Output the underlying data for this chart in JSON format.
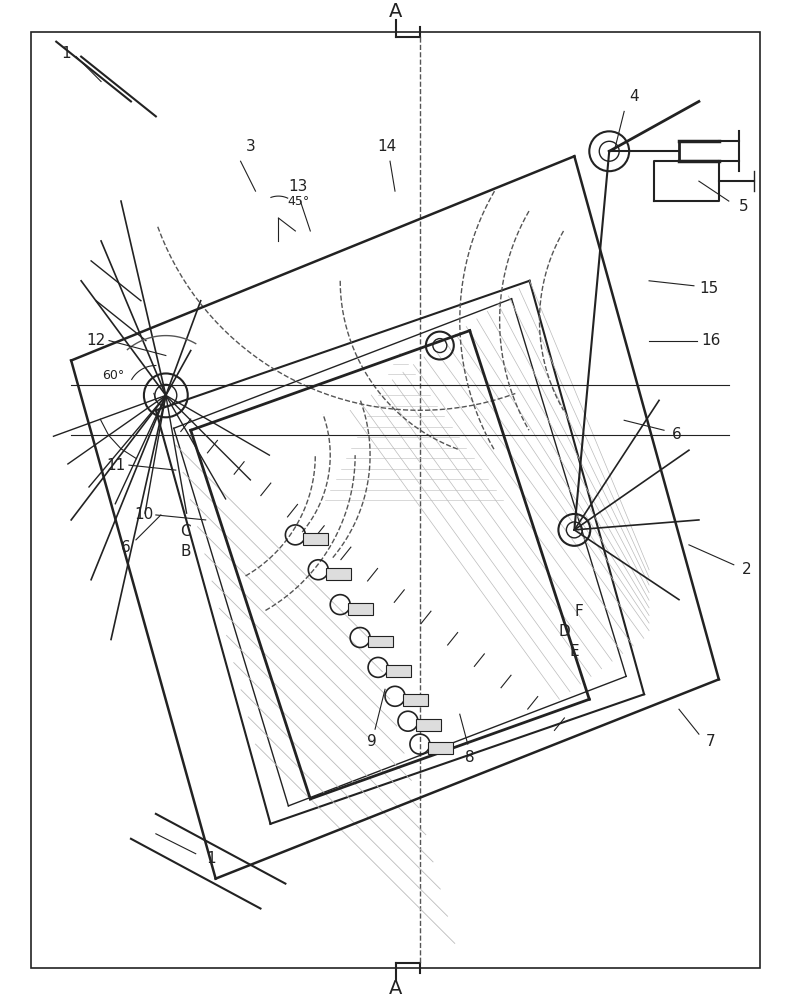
{
  "bg_color": "#f5f5f5",
  "border_color": "#333333",
  "line_color": "#222222",
  "gray_color": "#888888",
  "light_gray": "#bbbbbb",
  "dashed_color": "#555555",
  "title_A": "A",
  "labels": {
    "1": [
      1,
      "1"
    ],
    "2": [
      2,
      "2"
    ],
    "3": [
      3,
      "3"
    ],
    "4": [
      4,
      "4"
    ],
    "5": [
      5,
      "5"
    ],
    "6": [
      6,
      "6"
    ],
    "7": [
      7,
      "7"
    ],
    "8": [
      8,
      "8"
    ],
    "9": [
      9,
      "9"
    ],
    "10": [
      10,
      "10"
    ],
    "11": [
      11,
      "11"
    ],
    "12": [
      12,
      "12"
    ],
    "13": [
      13,
      "13"
    ],
    "14": [
      14,
      "14"
    ],
    "15": [
      15,
      "15"
    ],
    "16": [
      16,
      "16"
    ],
    "B": [
      "B",
      "B"
    ],
    "C": [
      "C",
      "C"
    ],
    "D": [
      "D",
      "D"
    ],
    "E": [
      "E",
      "E"
    ],
    "F": [
      "F",
      "F"
    ]
  },
  "angle_60": "60°",
  "angle_45": "45°"
}
